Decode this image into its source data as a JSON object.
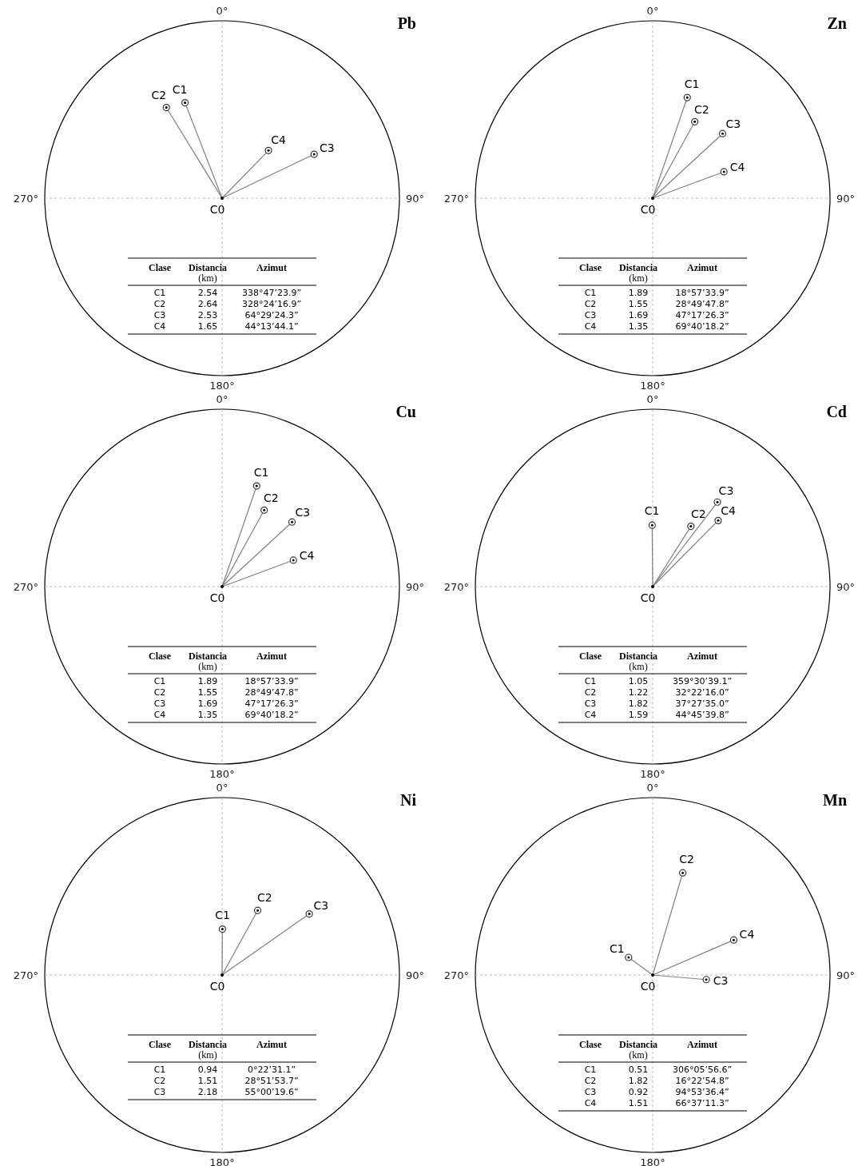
{
  "chart_data": [
    {
      "type": "other",
      "title": "Pb",
      "xlabel": "Clase",
      "categories": [
        "C1",
        "C2",
        "C3",
        "C4"
      ],
      "data_labels": true,
      "series": [
        {
          "name": "Distancia (km)",
          "values": [
            2.54,
            2.64,
            2.53,
            1.65
          ]
        }
      ],
      "annotations": [
        "C0",
        "0°",
        "90°",
        "180°",
        "270°",
        "Azimut",
        "338°47’23.9”",
        "328°24’16.9”",
        "64°29’24.3”",
        "44°13’44.1”"
      ]
    },
    {
      "type": "other",
      "title": "Zn",
      "xlabel": "Clase",
      "categories": [
        "C1",
        "C2",
        "C3",
        "C4"
      ],
      "data_labels": true,
      "series": [
        {
          "name": "Distancia (km)",
          "values": [
            1.89,
            1.55,
            1.69,
            1.35
          ]
        }
      ],
      "annotations": [
        "C0",
        "0°",
        "90°",
        "180°",
        "270°",
        "Azimut",
        "18°57’33.9”",
        "28°49’47.8”",
        "47°17’26.3”",
        "69°40’18.2”"
      ]
    },
    {
      "type": "other",
      "title": "Cu",
      "xlabel": "Clase",
      "categories": [
        "C1",
        "C2",
        "C3",
        "C4"
      ],
      "data_labels": true,
      "series": [
        {
          "name": "Distancia (km)",
          "values": [
            1.89,
            1.55,
            1.69,
            1.35
          ]
        }
      ],
      "annotations": [
        "C0",
        "0°",
        "90°",
        "180°",
        "270°",
        "Azimut",
        "18°57’33.9”",
        "28°49’47.8”",
        "47°17’26.3”",
        "69°40’18.2”"
      ]
    },
    {
      "type": "other",
      "title": "Cd",
      "xlabel": "Clase",
      "categories": [
        "C1",
        "C2",
        "C3",
        "C4"
      ],
      "data_labels": true,
      "series": [
        {
          "name": "Distancia (km)",
          "values": [
            1.05,
            1.22,
            1.82,
            1.59
          ]
        }
      ],
      "annotations": [
        "C0",
        "0°",
        "90°",
        "180°",
        "270°",
        "Azimut",
        "359°30’39.1”",
        "32°22’16.0”",
        "37°27’35.0”",
        "44°45’39.8”"
      ]
    },
    {
      "type": "other",
      "title": "Ni",
      "xlabel": "Clase",
      "categories": [
        "C1",
        "C2",
        "C3"
      ],
      "data_labels": true,
      "series": [
        {
          "name": "Distancia (km)",
          "values": [
            0.94,
            1.51,
            2.18
          ]
        }
      ],
      "annotations": [
        "C0",
        "0°",
        "90°",
        "180°",
        "270°",
        "Azimut",
        "0°22’31.1”",
        "28°51’53.7”",
        "55°00’19.6”"
      ]
    },
    {
      "type": "other",
      "title": "Mn",
      "xlabel": "Clase",
      "categories": [
        "C1",
        "C2",
        "C3",
        "C4"
      ],
      "data_labels": true,
      "series": [
        {
          "name": "Distancia (km)",
          "values": [
            0.51,
            1.82,
            0.92,
            1.51
          ]
        }
      ],
      "annotations": [
        "C0",
        "0°",
        "90°",
        "180°",
        "270°",
        "Azimut",
        "306°05’56.6”",
        "16°22’54.8”",
        "94°53’36.4”",
        "66°37’11.3”"
      ]
    }
  ]
}
